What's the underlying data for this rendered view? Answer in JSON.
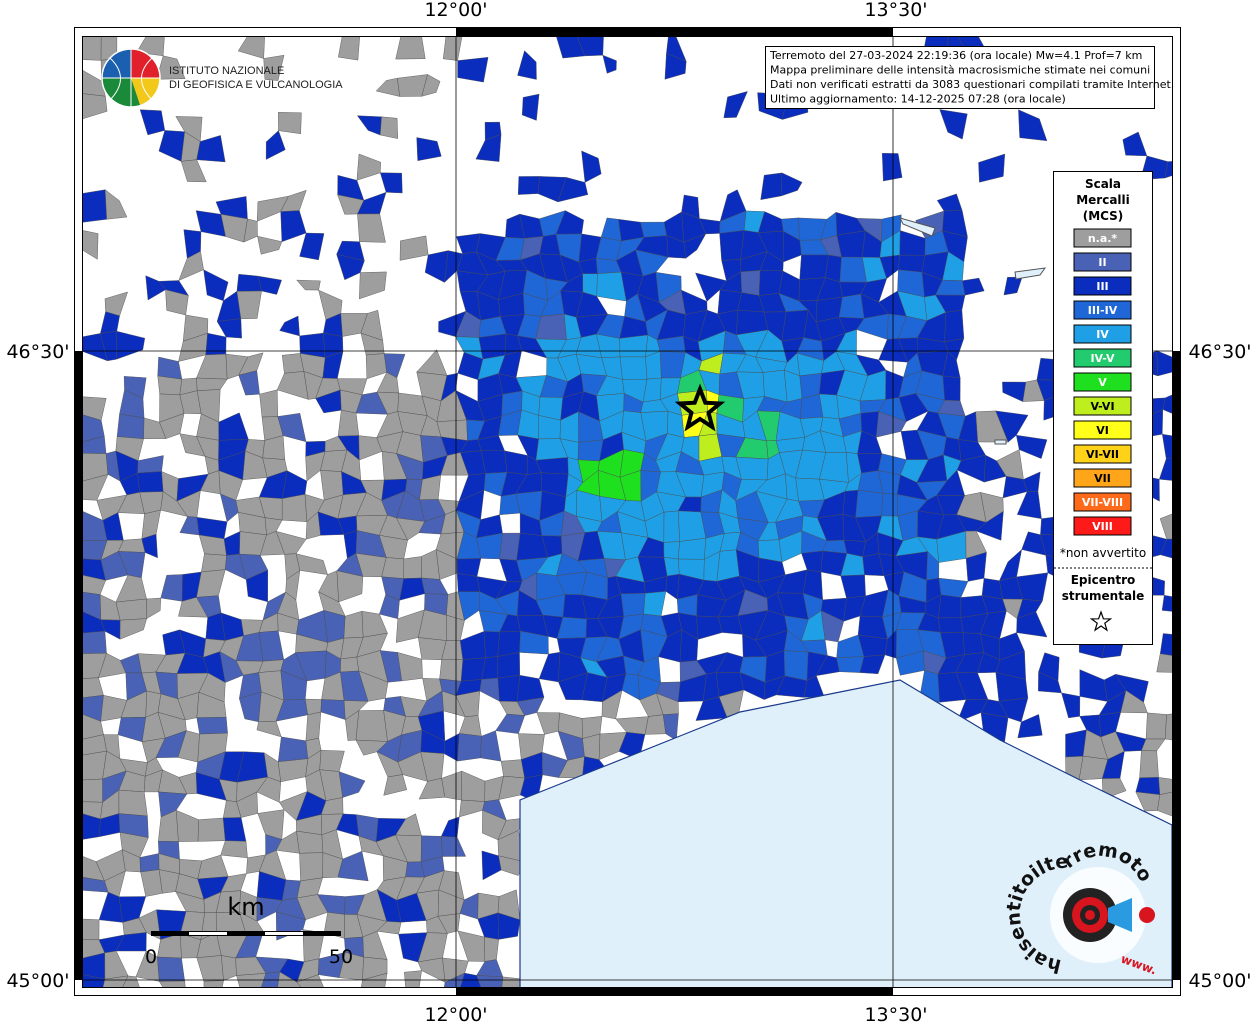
{
  "map": {
    "graticule": {
      "lon": [
        "12°00'",
        "13°30'"
      ],
      "lat": [
        "46°30'",
        "45°00'"
      ]
    },
    "logo_ingv": [
      "ISTITUTO NAZIONALE",
      "DI GEOFISICA E VULCANOLOGIA"
    ],
    "info": [
      "Terremoto del 27-03-2024 22:19:36 (ora locale) Mw=4.1 Prof=7 km",
      "Mappa preliminare delle intensità macrosismiche stimate nei comuni",
      "Dati non verificati estratti da 3083 questionari compilati tramite Internet.",
      "Ultimo aggiornamento: 14-12-2025 07:28 (ora locale)"
    ],
    "legend": {
      "title": [
        "Scala",
        "Mercalli",
        "(MCS)"
      ],
      "classes": [
        {
          "label": "n.a.*",
          "color": "#9e9e9e"
        },
        {
          "label": "II",
          "color": "#4a62b5"
        },
        {
          "label": "III",
          "color": "#0a2dbe"
        },
        {
          "label": "III-IV",
          "color": "#1f66d6"
        },
        {
          "label": "IV",
          "color": "#1fa0e6"
        },
        {
          "label": "IV-V",
          "color": "#22cc6e"
        },
        {
          "label": "V",
          "color": "#1fe01f"
        },
        {
          "label": "V-VI",
          "color": "#bfee1f"
        },
        {
          "label": "VI",
          "color": "#ffff1a"
        },
        {
          "label": "VI-VII",
          "color": "#ffd21a"
        },
        {
          "label": "VII",
          "color": "#ffa51a"
        },
        {
          "label": "VII-VIII",
          "color": "#ff6a1a"
        },
        {
          "label": "VIII",
          "color": "#ff1a1a"
        }
      ],
      "note": "*non avvertito",
      "epicenter": [
        "Epicentro",
        "strumentale"
      ]
    },
    "scale_bar": {
      "unit": "km",
      "labels": [
        "0",
        "50"
      ]
    },
    "logo_hsit": {
      "text": "haisentitoilterremoto.it",
      "www": "www."
    }
  }
}
